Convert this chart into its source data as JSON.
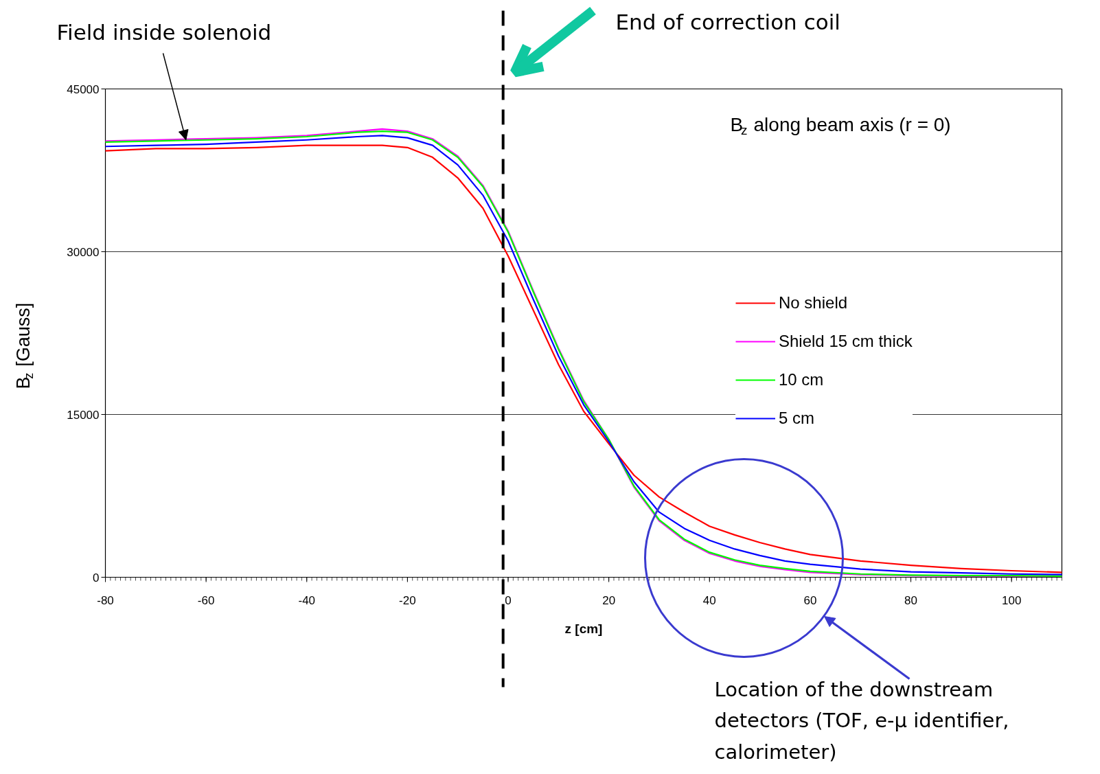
{
  "chart_data": {
    "type": "line",
    "title": "B$_{z}$ along beam axis  (r = 0)",
    "xlabel": "z [cm]",
    "ylabel": "B$_{z}$ [Gauss]",
    "x": [
      -80,
      -70,
      -60,
      -50,
      -40,
      -30,
      -25,
      -20,
      -15,
      -10,
      -5,
      0,
      5,
      10,
      15,
      20,
      25,
      30,
      35,
      40,
      45,
      50,
      55,
      60,
      70,
      80,
      90,
      100,
      110
    ],
    "series": [
      {
        "name": "No shield",
        "color": "#ff0000",
        "values": [
          39300,
          39500,
          39500,
          39600,
          39800,
          39800,
          39800,
          39600,
          38700,
          36800,
          34000,
          29600,
          24600,
          19600,
          15300,
          12300,
          9400,
          7400,
          6000,
          4700,
          3900,
          3200,
          2600,
          2100,
          1500,
          1100,
          800,
          600,
          450
        ]
      },
      {
        "name": "Shield 15 cm thick",
        "color": "#ff00ff",
        "values": [
          40200,
          40300,
          40400,
          40500,
          40700,
          41100,
          41300,
          41100,
          40400,
          38800,
          36100,
          31900,
          26400,
          21100,
          16300,
          12700,
          8300,
          5200,
          3400,
          2200,
          1500,
          1000,
          700,
          450,
          250,
          150,
          100,
          100,
          100
        ]
      },
      {
        "name": "10 cm",
        "color": "#00ff00",
        "values": [
          40100,
          40200,
          40300,
          40400,
          40600,
          41000,
          41100,
          41000,
          40300,
          38700,
          36000,
          31800,
          26300,
          21000,
          16200,
          12700,
          8400,
          5300,
          3500,
          2300,
          1600,
          1100,
          800,
          550,
          300,
          200,
          150,
          150,
          100
        ]
      },
      {
        "name": "5 cm",
        "color": "#0000ff",
        "values": [
          39700,
          39800,
          39900,
          40100,
          40300,
          40600,
          40700,
          40500,
          39800,
          38000,
          35200,
          31000,
          25600,
          20400,
          15900,
          12500,
          8800,
          6000,
          4500,
          3400,
          2600,
          2000,
          1500,
          1200,
          750,
          500,
          400,
          300,
          250
        ]
      }
    ],
    "xlim": [
      -80,
      110
    ],
    "xticks": [
      -80,
      -60,
      -40,
      -20,
      0,
      20,
      40,
      60,
      80,
      100
    ],
    "ylim": [
      0,
      45000
    ],
    "yticks": [
      0,
      15000,
      30000,
      45000
    ],
    "grid": "y",
    "legend": "right",
    "marker": "none",
    "line_style": "solid",
    "ref_lines": [
      {
        "axis": "x",
        "value": -1,
        "color": "#000000",
        "line_style": "dashed"
      }
    ],
    "annotations": [
      {
        "text": "Field inside solenoid",
        "x": -64,
        "y": 40300
      },
      "End of correction coil",
      "Location of the downstream\ndetectors (TOF, e-μ identifier,\ncalorimeter)"
    ]
  }
}
